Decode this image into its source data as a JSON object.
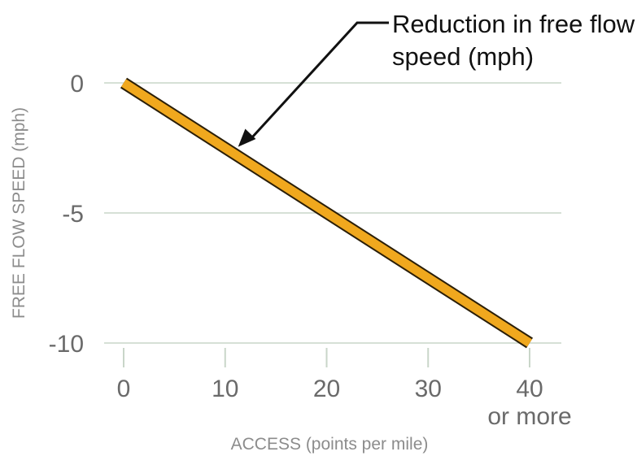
{
  "chart_data": {
    "type": "line",
    "xlabel": "ACCESS (points per mile)",
    "ylabel": "FREE FLOW SPEED (mph)",
    "xlim": [
      0,
      40
    ],
    "ylim": [
      -10,
      0
    ],
    "x_ticks": [
      {
        "value": 0,
        "label": "0"
      },
      {
        "value": 10,
        "label": "10"
      },
      {
        "value": 20,
        "label": "20"
      },
      {
        "value": 30,
        "label": "30"
      },
      {
        "value": 40,
        "label": "40"
      }
    ],
    "x_tick_extra_label": "or more",
    "y_ticks": [
      {
        "value": 0,
        "label": "0"
      },
      {
        "value": -5,
        "label": "-5"
      },
      {
        "value": -10,
        "label": "-10"
      }
    ],
    "grid": "horizontal",
    "series": [
      {
        "name": "Reduction in free flow speed (mph)",
        "color": "#f0a81e",
        "outline_color": "#2a1e08",
        "x": [
          0,
          40
        ],
        "y": [
          0,
          -10
        ]
      }
    ],
    "annotation": {
      "lines": [
        "Reduction in free flow",
        "speed (mph)"
      ],
      "points_to": {
        "x": 12,
        "y": -2.8
      }
    }
  }
}
